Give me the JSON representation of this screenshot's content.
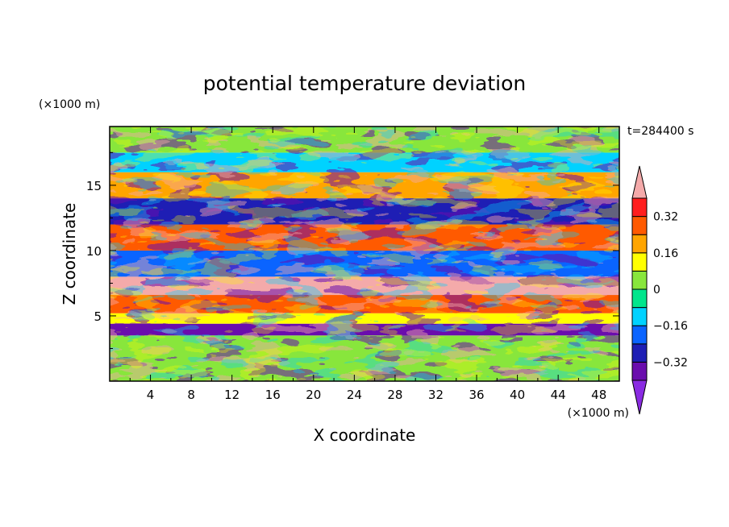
{
  "chart_data": {
    "type": "heatmap",
    "title": "potential temperature deviation",
    "xlabel": "X coordinate",
    "ylabel": "Z coordinate",
    "x_unit": "(×1000 m)",
    "y_unit": "(×1000 m)",
    "time_label": "t=284400 s",
    "xlim": [
      0,
      50
    ],
    "ylim": [
      0,
      19.5
    ],
    "x_ticks": [
      "4",
      "8",
      "12",
      "16",
      "20",
      "24",
      "28",
      "32",
      "36",
      "40",
      "44",
      "48"
    ],
    "x_tick_values": [
      4,
      8,
      12,
      16,
      20,
      24,
      28,
      32,
      36,
      40,
      44,
      48
    ],
    "y_ticks": [
      "5",
      "10",
      "15"
    ],
    "y_tick_values": [
      5,
      10,
      15
    ],
    "colorbar": {
      "levels": [
        -0.4,
        -0.32,
        -0.24,
        -0.16,
        -0.08,
        0,
        0.08,
        0.16,
        0.24,
        0.32,
        0.4
      ],
      "labels": [
        "0.32",
        "0.16",
        "0",
        "−0.16",
        "−0.32"
      ],
      "label_values": [
        0.32,
        0.16,
        0,
        -0.16,
        -0.32
      ],
      "colors_low_to_high": [
        "#8a2be2",
        "#6a0dad",
        "#1e1eb4",
        "#0a64ff",
        "#00d2ff",
        "#00e68c",
        "#88e63c",
        "#ffff00",
        "#ffa500",
        "#ff5a00",
        "#ff1e1e",
        "#f4aaaa"
      ]
    },
    "layers": [
      {
        "z": [
          0,
          3.5
        ],
        "value": 0.05
      },
      {
        "z": [
          3.5,
          4.4
        ],
        "value": -0.35
      },
      {
        "z": [
          4.4,
          5.2
        ],
        "value": 0.1
      },
      {
        "z": [
          5.2,
          6.6
        ],
        "value": 0.3
      },
      {
        "z": [
          6.6,
          8.0
        ],
        "value": 0.4
      },
      {
        "z": [
          8.0,
          10.0
        ],
        "value": -0.2
      },
      {
        "z": [
          10.0,
          12.0
        ],
        "value": 0.3
      },
      {
        "z": [
          12.0,
          14.0
        ],
        "value": -0.3
      },
      {
        "z": [
          14.0,
          16.0
        ],
        "value": 0.2
      },
      {
        "z": [
          16.0,
          17.5
        ],
        "value": -0.1
      },
      {
        "z": [
          17.5,
          19.5
        ],
        "value": 0.06
      }
    ]
  }
}
